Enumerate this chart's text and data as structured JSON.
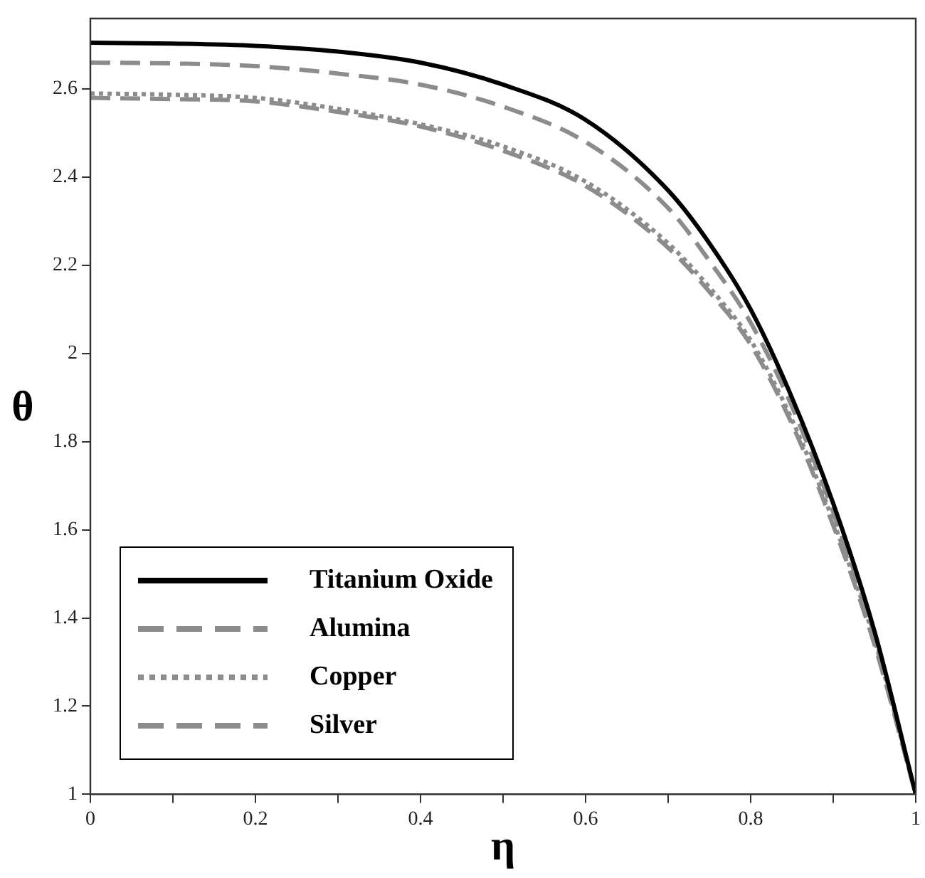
{
  "chart_data": {
    "type": "line",
    "xlabel": "η",
    "ylabel": "θ",
    "xlim": [
      0,
      1
    ],
    "ylim": [
      1,
      2.76
    ],
    "xticks": [
      {
        "value": 0,
        "label": "0"
      },
      {
        "value": 0.1,
        "label": null
      },
      0.2,
      {
        "value": 0.3,
        "label": null
      },
      0.4,
      {
        "value": 0.5,
        "label": null
      },
      0.6,
      {
        "value": 0.7,
        "label": null
      },
      0.8,
      {
        "value": 0.9,
        "label": null
      },
      {
        "value": 1,
        "label": "1"
      }
    ],
    "yticks": [
      1,
      1.2,
      1.4,
      1.6,
      1.8,
      2,
      2.2,
      2.4,
      2.6
    ],
    "x": [
      0,
      0.1,
      0.2,
      0.3,
      0.4,
      0.5,
      0.6,
      0.7,
      0.75,
      0.8,
      0.85,
      0.9,
      0.95,
      1
    ],
    "grid": false,
    "legend": "bottom left",
    "marker": "none",
    "series": [
      {
        "name": "Titanium Oxide",
        "color": "#000000",
        "line_style": "solid",
        "values": [
          2.705,
          2.703,
          2.698,
          2.685,
          2.66,
          2.61,
          2.53,
          2.37,
          2.25,
          2.1,
          1.9,
          1.66,
          1.37,
          1.0
        ]
      },
      {
        "name": "Alumina",
        "color": "#8c8c8c",
        "line_style": "dashed",
        "values": [
          2.66,
          2.658,
          2.652,
          2.635,
          2.61,
          2.56,
          2.48,
          2.33,
          2.21,
          2.07,
          1.88,
          1.64,
          1.36,
          1.0
        ]
      },
      {
        "name": "Copper",
        "color": "#8c8c8c",
        "line_style": "dotted",
        "values": [
          2.59,
          2.587,
          2.58,
          2.555,
          2.52,
          2.47,
          2.39,
          2.25,
          2.15,
          2.03,
          1.85,
          1.62,
          1.35,
          1.0
        ]
      },
      {
        "name": "Silver",
        "color": "#8c8c8c",
        "line_style": "dashed",
        "values": [
          2.58,
          2.577,
          2.572,
          2.548,
          2.515,
          2.46,
          2.38,
          2.24,
          2.14,
          2.02,
          1.84,
          1.61,
          1.34,
          1.0
        ]
      }
    ]
  }
}
